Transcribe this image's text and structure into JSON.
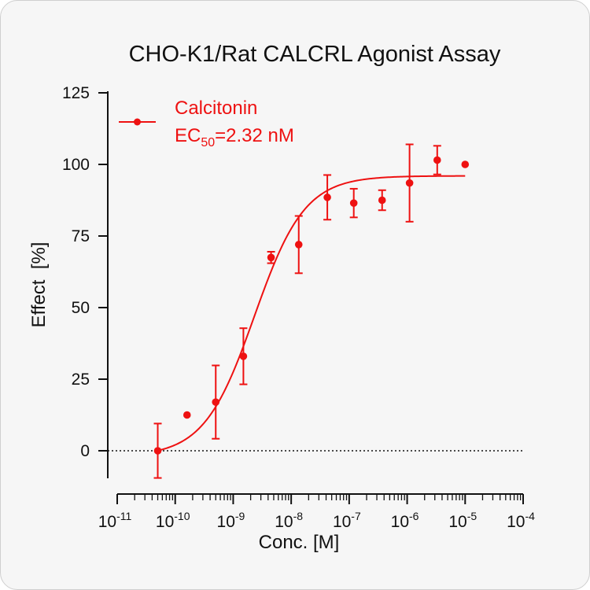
{
  "chart_data": {
    "type": "scatter",
    "title": "CHO-K1/Rat CALCRL Agonist Assay",
    "xlabel": "Conc. [M]",
    "ylabel": "Effect  [%]",
    "x_scale": "log",
    "xlim": [
      1e-11,
      0.0001
    ],
    "ylim": [
      -10,
      125
    ],
    "yticks": [
      0,
      25,
      50,
      75,
      100,
      125
    ],
    "ytick_labels": [
      "0",
      "25",
      "50",
      "75",
      "100",
      "125"
    ],
    "xticks": [
      {
        "base": "10",
        "exp": "-11",
        "value": 1e-11
      },
      {
        "base": "10",
        "exp": "-10",
        "value": 1e-10
      },
      {
        "base": "10",
        "exp": "-9",
        "value": 1e-09
      },
      {
        "base": "10",
        "exp": "-8",
        "value": 1e-08
      },
      {
        "base": "10",
        "exp": "-7",
        "value": 1e-07
      },
      {
        "base": "10",
        "exp": "-6",
        "value": 1e-06
      },
      {
        "base": "10",
        "exp": "-5",
        "value": 1e-05
      },
      {
        "base": "10",
        "exp": "-4",
        "value": 0.0001
      }
    ],
    "grid": false,
    "zero_line": "dotted",
    "legend_position": "top-left",
    "color": "#ee1111",
    "series": [
      {
        "name": "Calcitonin",
        "ec50_label": {
          "prefix": "EC",
          "sub": "50",
          "suffix": "=2.32 nM"
        },
        "points": [
          {
            "x": 5e-11,
            "y": 0,
            "err": 9.5
          },
          {
            "x": 1.6e-10,
            "y": 12.5,
            "err": 0
          },
          {
            "x": 5e-10,
            "y": 17,
            "err": 12.8
          },
          {
            "x": 1.5e-09,
            "y": 33,
            "err": 9.8
          },
          {
            "x": 4.5e-09,
            "y": 67.5,
            "err": 2
          },
          {
            "x": 1.35e-08,
            "y": 72,
            "err": 10
          },
          {
            "x": 4.2e-08,
            "y": 88.5,
            "err": 7.8
          },
          {
            "x": 1.2e-07,
            "y": 86.5,
            "err": 5
          },
          {
            "x": 3.7e-07,
            "y": 87.5,
            "err": 3.5
          },
          {
            "x": 1.1e-06,
            "y": 93.5,
            "err": 13.5
          },
          {
            "x": 3.3e-06,
            "y": 101.5,
            "err": 5
          },
          {
            "x": 1e-05,
            "y": 100,
            "err": 0
          }
        ],
        "fit": {
          "bottom": -2,
          "top": 96,
          "ec50": 2.32e-09,
          "hill": 1,
          "x_range": [
            5e-11,
            1e-05
          ]
        }
      }
    ]
  }
}
